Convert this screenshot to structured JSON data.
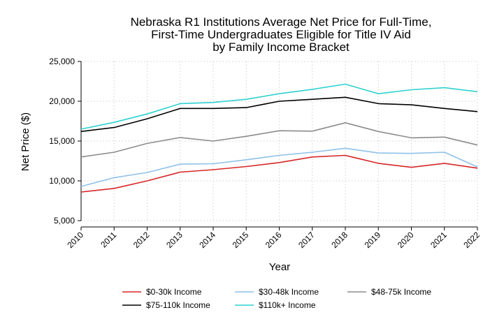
{
  "chart_data": {
    "type": "line",
    "title": [
      "Nebraska R1 Institutions Average Net Price for Full-Time,",
      "First-Time Undergraduates Eligible for Title IV Aid",
      "by Family Income Bracket"
    ],
    "xlabel": "Year",
    "ylabel": "Net Price ($)",
    "x": [
      2010,
      2011,
      2012,
      2013,
      2014,
      2015,
      2016,
      2017,
      2018,
      2019,
      2020,
      2021,
      2022
    ],
    "x_tick_labels": [
      "2010",
      "2011",
      "2012",
      "2013",
      "2014",
      "2015",
      "2016",
      "2017",
      "2018",
      "2019",
      "2020",
      "2021",
      "2022"
    ],
    "ylim": [
      5000,
      25000
    ],
    "y_ticks": [
      5000,
      10000,
      15000,
      20000,
      25000
    ],
    "y_tick_labels": [
      "5,000",
      "10,000",
      "15,000",
      "20,000",
      "25,000"
    ],
    "grid": true,
    "legend_position": "bottom",
    "series": [
      {
        "name": "$0-30k Income",
        "color": "#d62728",
        "values": [
          8600,
          9050,
          10000,
          11100,
          11400,
          11800,
          12300,
          13000,
          13200,
          12200,
          11700,
          12200,
          11600
        ]
      },
      {
        "name": "$30-48k Income",
        "color": "#8ec1e8",
        "values": [
          9300,
          10400,
          11050,
          12100,
          12150,
          12650,
          13200,
          13600,
          14100,
          13500,
          13450,
          13600,
          11750
        ]
      },
      {
        "name": "$48-75k Income",
        "color": "#8c8c8c",
        "values": [
          13000,
          13600,
          14700,
          15450,
          15000,
          15600,
          16300,
          16250,
          17300,
          16200,
          15400,
          15500,
          14500
        ]
      },
      {
        "name": "$75-110k Income",
        "color": "#000000",
        "values": [
          16200,
          16700,
          17800,
          19100,
          19100,
          19200,
          20000,
          20250,
          20500,
          19700,
          19550,
          19100,
          18700
        ]
      },
      {
        "name": "$110k+ Income",
        "color": "#2fd1d1",
        "values": [
          16500,
          17350,
          18400,
          19700,
          19850,
          20250,
          20950,
          21500,
          22150,
          20950,
          21450,
          21700,
          21200
        ]
      }
    ]
  }
}
